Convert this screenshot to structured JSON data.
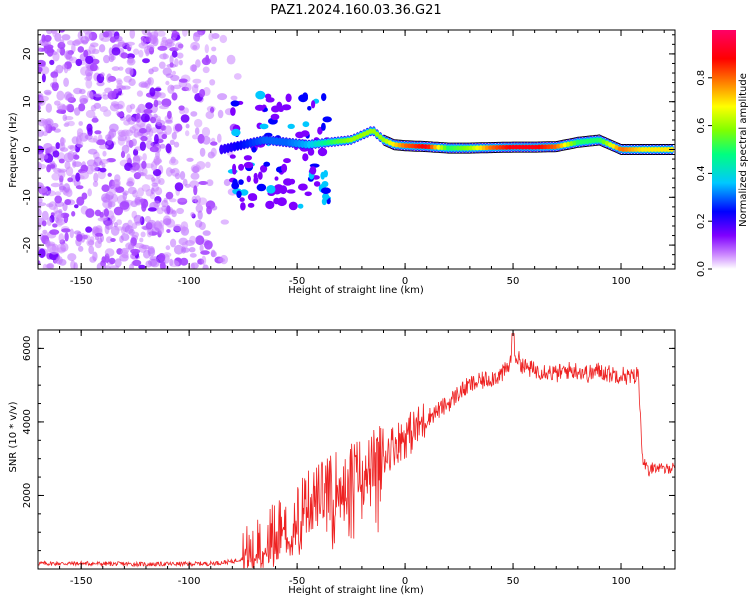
{
  "title": "PAZ1.2024.160.03.36.G21",
  "chart_data": [
    {
      "type": "heatmap",
      "xlabel": "Height of straight line (km)",
      "ylabel": "Frequency (Hz)",
      "xlim": [
        -170,
        125
      ],
      "ylim": [
        -25,
        25
      ],
      "xticks": [
        "-150",
        "-100",
        "-50",
        "0",
        "50",
        "100"
      ],
      "yticks": [
        "-20",
        "-10",
        "0",
        "10",
        "20"
      ],
      "colorbar": {
        "label": "Normalized spectral amplitude",
        "range": [
          0,
          1
        ],
        "ticks": [
          "0.0",
          "0.2",
          "0.4",
          "0.6",
          "0.8"
        ],
        "colormap": [
          "#ffffff",
          "#cc88ff",
          "#7f00ff",
          "#0000ff",
          "#00c8ff",
          "#00ff80",
          "#80ff00",
          "#ffff00",
          "#ff8000",
          "#ff0000",
          "#ff0066"
        ]
      },
      "ridge": {
        "description_points_x": [
          -85,
          -75,
          -65,
          -55,
          -45,
          -35,
          -25,
          -15,
          -10,
          -5,
          0,
          10,
          20,
          30,
          40,
          50,
          60,
          70,
          80,
          90,
          100,
          110,
          125
        ],
        "description_points_y": [
          0,
          1,
          2,
          1.5,
          1,
          1.5,
          2,
          4,
          2,
          1,
          0.8,
          0.6,
          0.3,
          0.3,
          0.4,
          0.5,
          0.5,
          0.6,
          1.5,
          2,
          0,
          0,
          0
        ],
        "amplitude": [
          0.2,
          0.25,
          0.3,
          0.3,
          0.35,
          0.5,
          0.6,
          0.6,
          0.6,
          0.7,
          0.8,
          0.9,
          0.5,
          0.6,
          0.8,
          0.9,
          0.9,
          0.8,
          0.5,
          0.5,
          0.8,
          0.7,
          0.7
        ]
      }
    },
    {
      "type": "line",
      "xlabel": "Height of straight line (km)",
      "ylabel": "SNR (10 * v/v)",
      "xlim": [
        -170,
        125
      ],
      "ylim": [
        0,
        6500
      ],
      "xticks": [
        "-150",
        "-100",
        "-50",
        "0",
        "50",
        "100"
      ],
      "yticks": [
        "2000",
        "4000",
        "6000"
      ],
      "color": "#ee2222",
      "x": [
        -170,
        -150,
        -120,
        -100,
        -90,
        -80,
        -75,
        -70,
        -65,
        -60,
        -55,
        -50,
        -45,
        -40,
        -35,
        -30,
        -25,
        -20,
        -15,
        -10,
        -5,
        0,
        5,
        10,
        15,
        20,
        25,
        30,
        35,
        40,
        45,
        48,
        50,
        55,
        60,
        65,
        70,
        75,
        80,
        85,
        90,
        95,
        100,
        105,
        108,
        110,
        113,
        115,
        120,
        125
      ],
      "y": [
        150,
        150,
        130,
        140,
        150,
        200,
        300,
        400,
        700,
        1000,
        1300,
        1600,
        1800,
        2000,
        2200,
        2400,
        2600,
        2700,
        2900,
        3100,
        3400,
        3600,
        3800,
        4100,
        4300,
        4500,
        4800,
        5000,
        5100,
        5200,
        5300,
        5500,
        5900,
        5500,
        5400,
        5400,
        5300,
        5400,
        5400,
        5300,
        5400,
        5300,
        5300,
        5200,
        5300,
        3000,
        2600,
        2800,
        2700,
        2800
      ]
    }
  ]
}
